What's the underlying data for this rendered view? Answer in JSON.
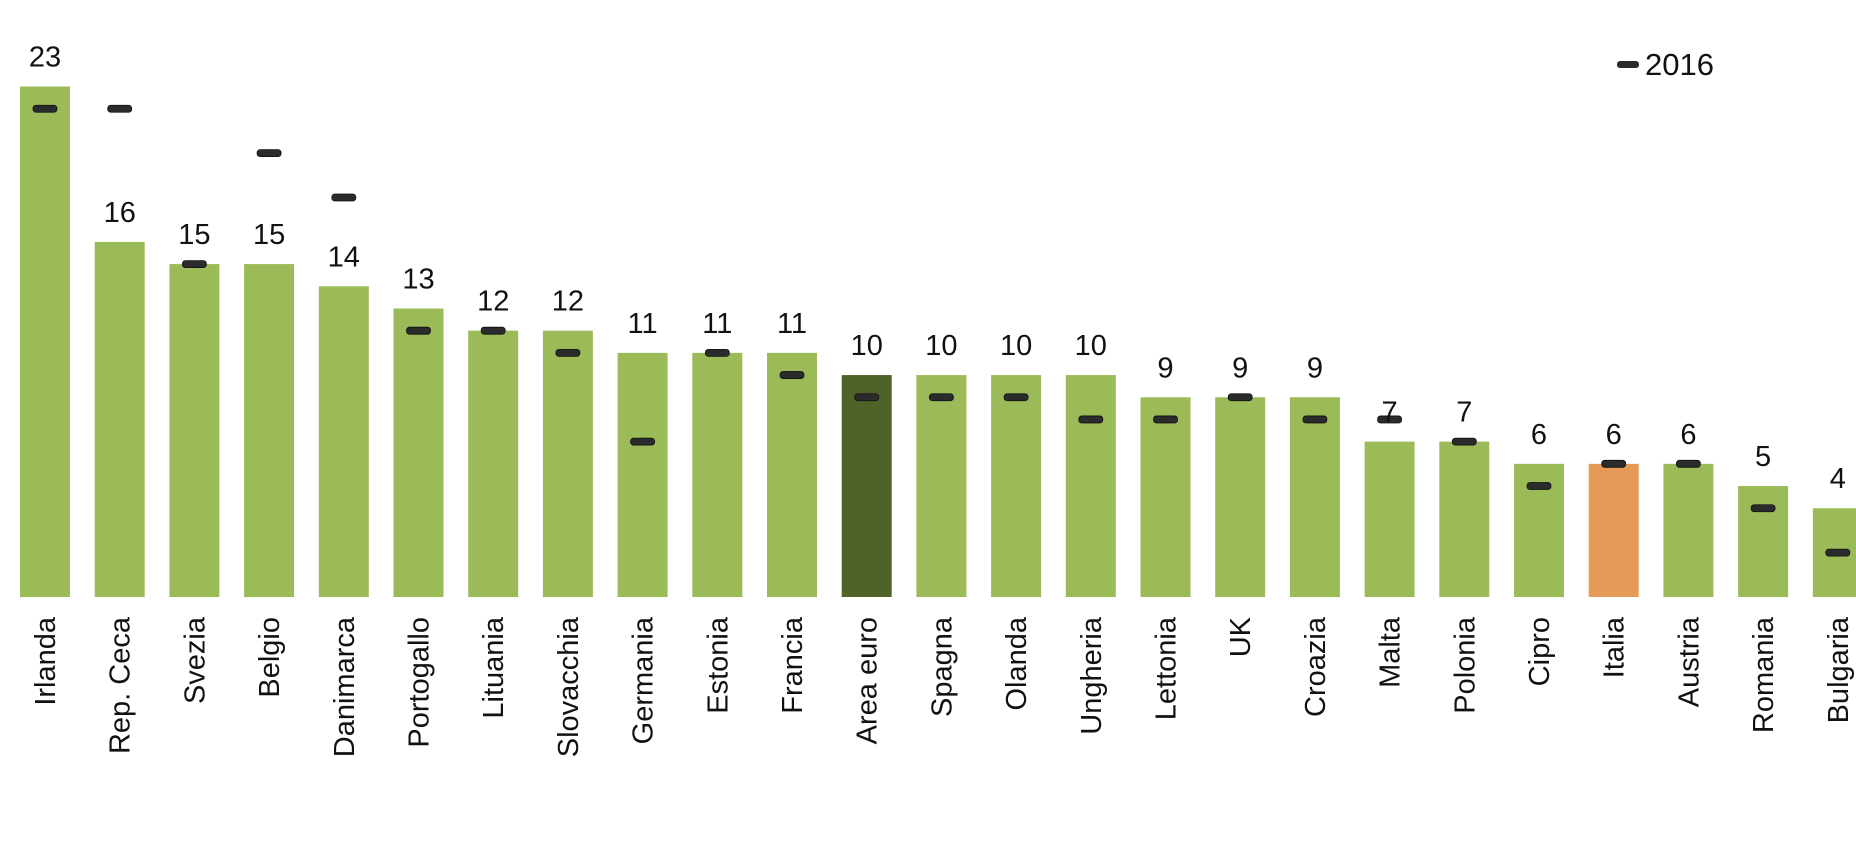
{
  "chart_data": {
    "type": "bar",
    "categories": [
      "Irlanda",
      "Rep. Ceca",
      "Svezia",
      "Belgio",
      "Danimarca",
      "Portogallo",
      "Lituania",
      "Slovacchia",
      "Germania",
      "Estonia",
      "Francia",
      "Area euro",
      "Spagna",
      "Olanda",
      "Ungheria",
      "Lettonia",
      "UK",
      "Croazia",
      "Malta",
      "Polonia",
      "Cipro",
      "Italia",
      "Austria",
      "Romania",
      "Bulgaria"
    ],
    "series": [
      {
        "values": [
          23,
          16,
          15,
          15,
          14,
          13,
          12,
          12,
          11,
          11,
          11,
          10,
          10,
          10,
          10,
          9,
          9,
          9,
          7,
          7,
          6,
          6,
          6,
          5,
          4
        ],
        "data_labels": [
          "23",
          "16",
          "15",
          "15",
          "14",
          "13",
          "12",
          "12",
          "11",
          "11",
          "11",
          "10",
          "10",
          "10",
          "10",
          "9",
          "9",
          "9",
          "7",
          "7",
          "6",
          "6",
          "6",
          "5",
          "4"
        ]
      },
      {
        "name": "2016",
        "type": "marker",
        "values": [
          22,
          22,
          15,
          20,
          18,
          12,
          12,
          11,
          7,
          11,
          10,
          9,
          9,
          9,
          8,
          8,
          9,
          8,
          8,
          7,
          5,
          6,
          6,
          4,
          2
        ]
      }
    ],
    "ylim": [
      0,
      23.7
    ],
    "grid": false,
    "legend": "top-right",
    "colors": {
      "bar": "#9bbb59",
      "area_euro": "#4f6228",
      "italia": "#e59a57",
      "marker": "#2b2b2b"
    }
  }
}
